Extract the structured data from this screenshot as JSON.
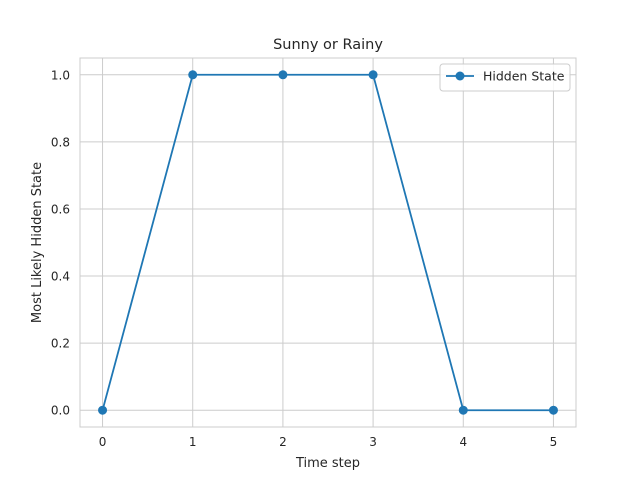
{
  "chart_data": {
    "type": "line",
    "title": "Sunny or Rainy",
    "xlabel": "Time step",
    "ylabel": "Most Likely Hidden State",
    "x": [
      0,
      1,
      2,
      3,
      4,
      5
    ],
    "series": [
      {
        "name": "Hidden State",
        "values": [
          0,
          1,
          1,
          1,
          0,
          0
        ],
        "color": "#1f77b4",
        "marker": "circle"
      }
    ],
    "xlim": [
      -0.25,
      5.25
    ],
    "ylim": [
      -0.05,
      1.05
    ],
    "xticks": [
      0,
      1,
      2,
      3,
      4,
      5
    ],
    "xtick_labels": [
      "0",
      "1",
      "2",
      "3",
      "4",
      "5"
    ],
    "yticks": [
      0.0,
      0.2,
      0.4,
      0.6,
      0.8,
      1.0
    ],
    "ytick_labels": [
      "0.0",
      "0.2",
      "0.4",
      "0.6",
      "0.8",
      "1.0"
    ],
    "grid": true,
    "legend": "top-right",
    "colors": {
      "grid": "#cccccc",
      "spine": "#cccccc",
      "text": "#262626"
    }
  }
}
